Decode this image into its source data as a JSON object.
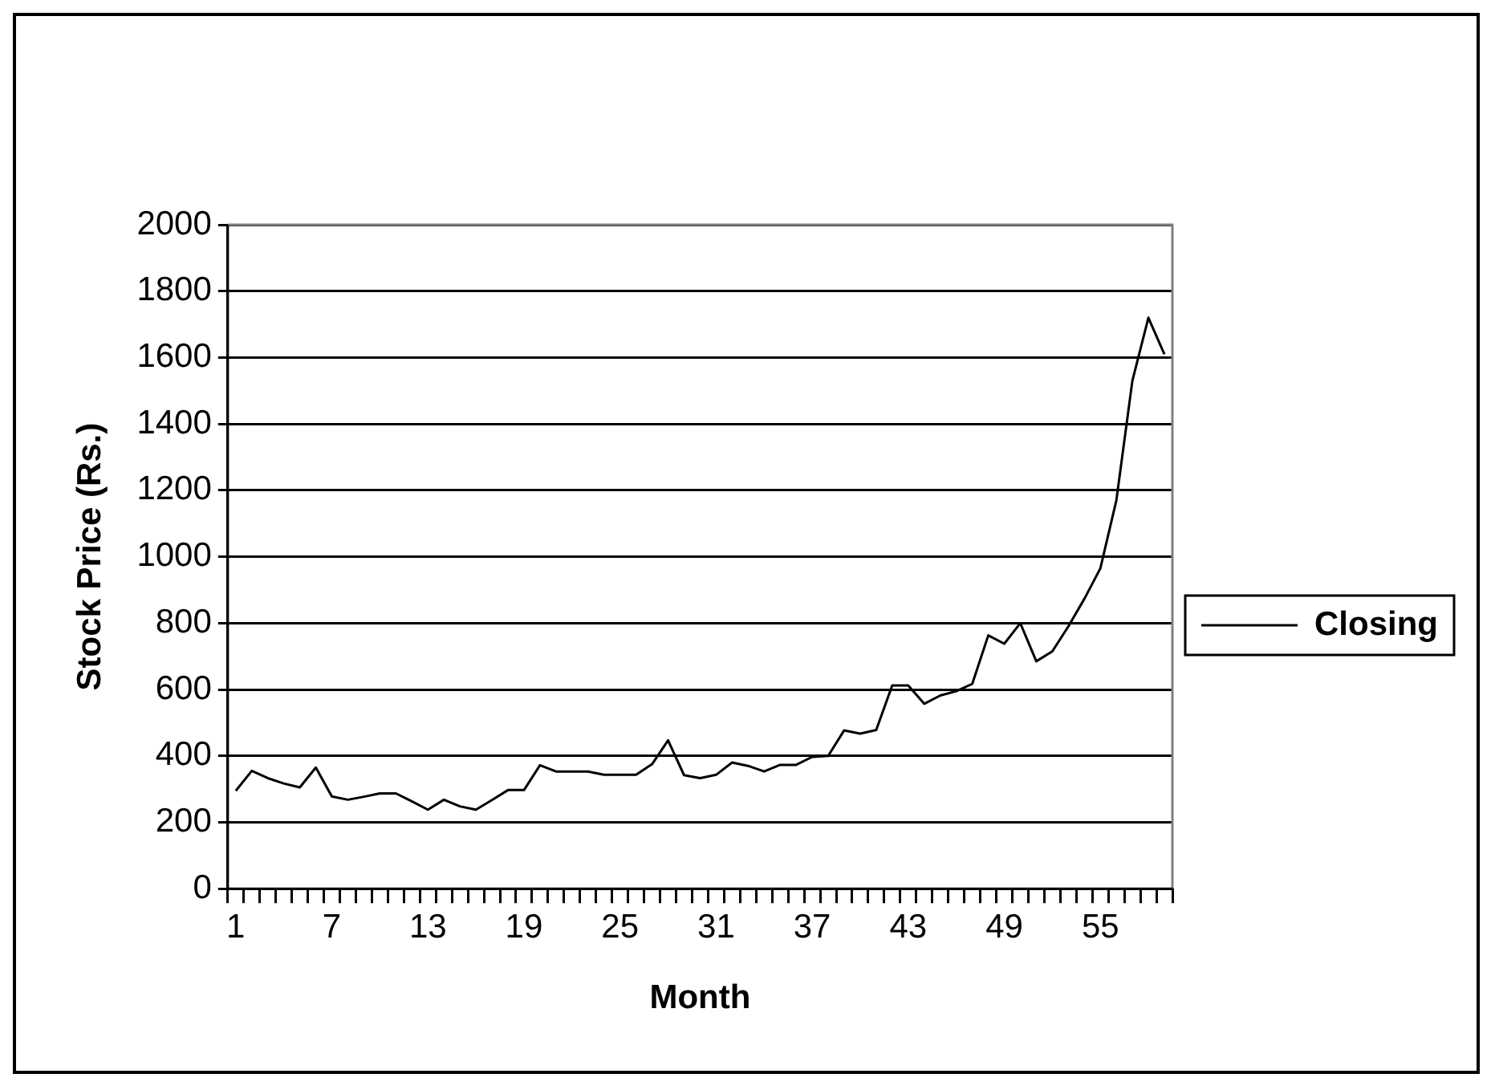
{
  "chart_data": {
    "type": "line",
    "xlabel": "Month",
    "ylabel": "Stock Price (Rs.)",
    "categories": [
      "1",
      null,
      null,
      null,
      null,
      null,
      "7",
      null,
      null,
      null,
      null,
      null,
      "13",
      null,
      null,
      null,
      null,
      null,
      "19",
      null,
      null,
      null,
      null,
      null,
      "25",
      null,
      null,
      null,
      null,
      null,
      "31",
      null,
      null,
      null,
      null,
      null,
      "37",
      null,
      null,
      null,
      null,
      null,
      "43",
      null,
      null,
      null,
      null,
      null,
      "49",
      null,
      null,
      null,
      null,
      null,
      "55",
      null,
      null,
      null,
      null
    ],
    "series": [
      {
        "name": "Closing",
        "color": "#000000",
        "values": [
          295,
          355,
          333,
          317,
          305,
          365,
          278,
          268,
          277,
          287,
          287,
          263,
          238,
          268,
          248,
          238,
          267,
          297,
          297,
          372,
          353,
          353,
          353,
          343,
          343,
          343,
          375,
          447,
          342,
          333,
          343,
          380,
          370,
          353,
          373,
          373,
          397,
          400,
          477,
          467,
          478,
          612,
          612,
          557,
          582,
          595,
          617,
          763,
          738,
          800,
          685,
          715,
          790,
          873,
          965,
          1170,
          1530,
          1720,
          1610
        ]
      }
    ],
    "ylim": [
      0,
      2000
    ],
    "yticks": [
      0,
      200,
      400,
      600,
      800,
      1000,
      1200,
      1400,
      1600,
      1800,
      2000
    ],
    "grid": "y",
    "legend": "right",
    "marker": "none",
    "line_style": "solid"
  }
}
